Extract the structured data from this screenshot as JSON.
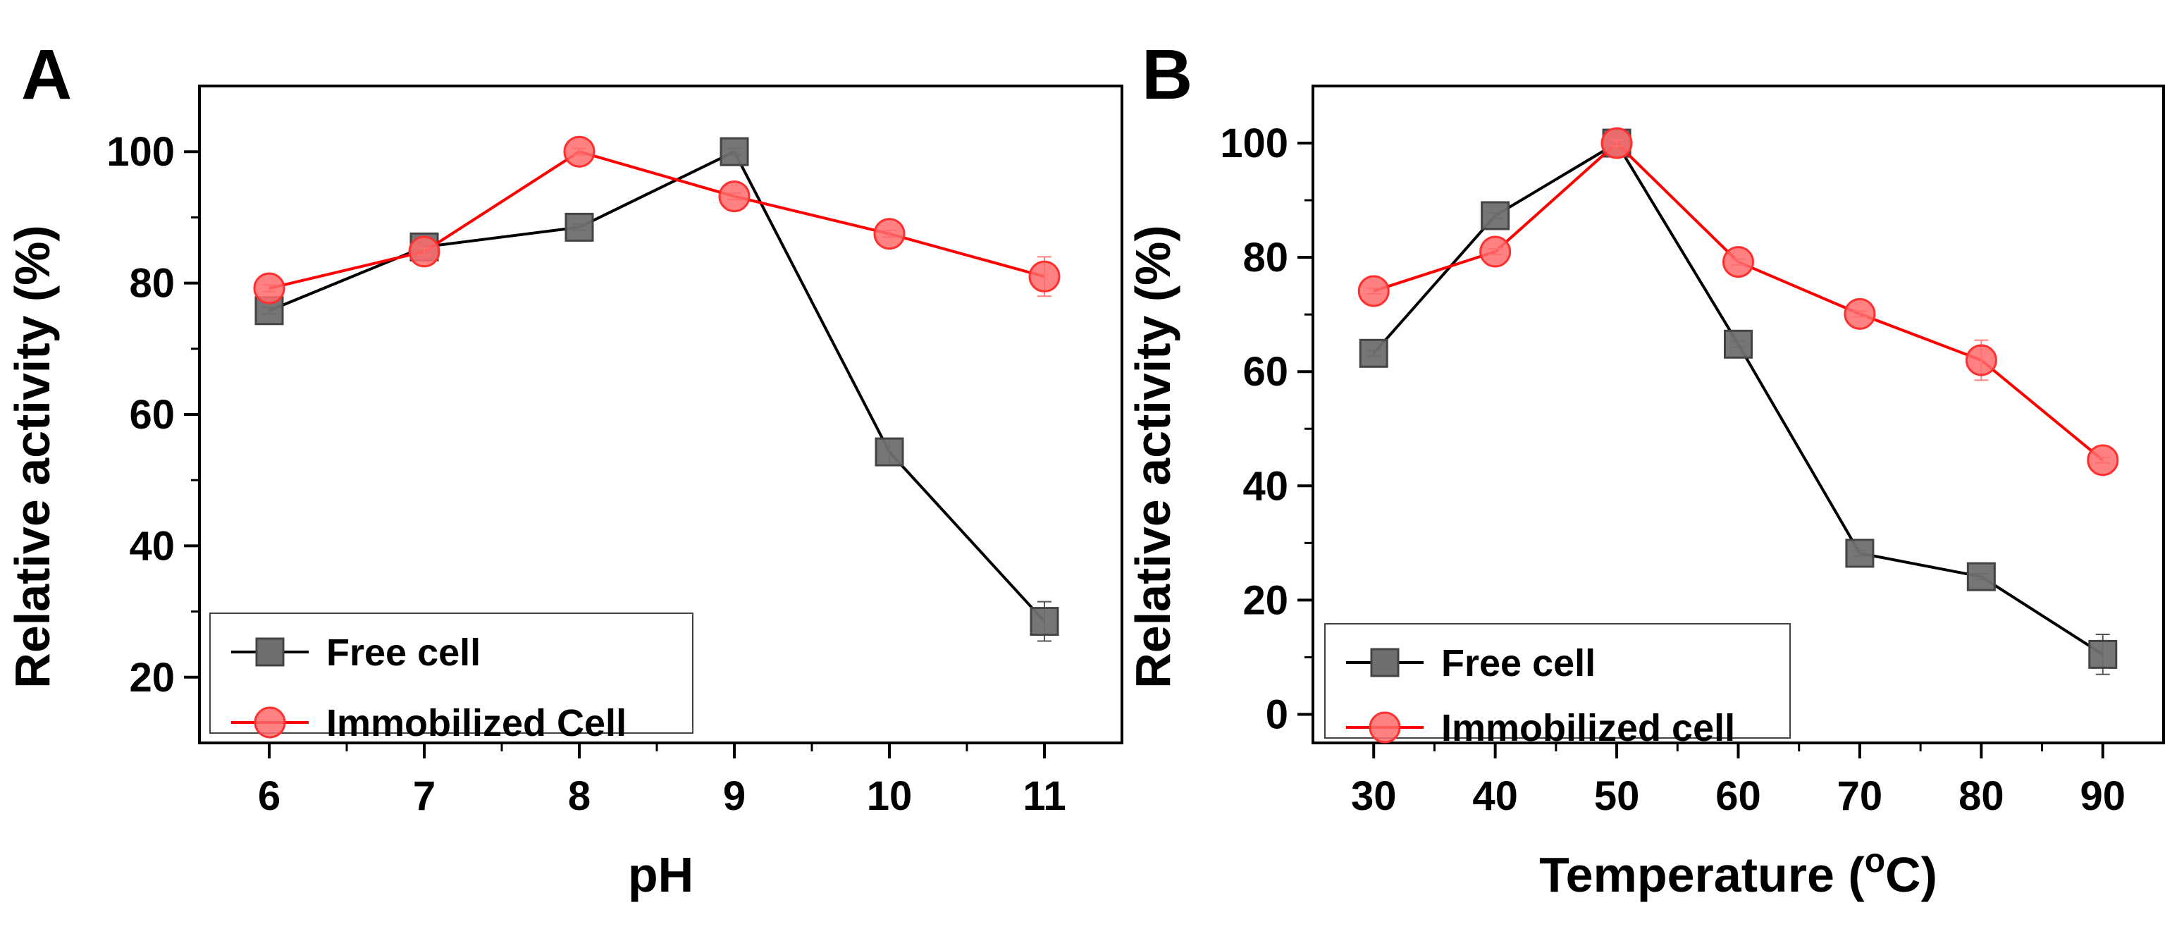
{
  "chart_data": [
    {
      "type": "line",
      "panel_label": "A",
      "xlabel": "pH",
      "ylabel": "Relative activity (%)",
      "x": [
        6,
        7,
        8,
        9,
        10,
        11
      ],
      "xlim": [
        5.55,
        11.5
      ],
      "ylim": [
        10,
        110
      ],
      "xticks": [
        6,
        7,
        8,
        9,
        10,
        11
      ],
      "yticks": [
        20,
        40,
        60,
        80,
        100
      ],
      "grid": false,
      "legend": "bottom-left",
      "series": [
        {
          "name": "Free cell",
          "marker": "square",
          "color": "#000000",
          "fill": "#6f6f6f",
          "values": [
            75.8,
            85.5,
            88.5,
            100,
            54.3,
            28.5
          ],
          "errors": [
            0.5,
            0.5,
            0.5,
            0.5,
            2.0,
            3.0
          ]
        },
        {
          "name": "Immobilized Cell",
          "marker": "circle",
          "color": "#ff0000",
          "fill": "#ff6b6b",
          "values": [
            79.2,
            84.8,
            100,
            93.2,
            87.5,
            81.0
          ],
          "errors": [
            0.5,
            0.5,
            0.5,
            0.5,
            0.5,
            3.0
          ]
        }
      ]
    },
    {
      "type": "line",
      "panel_label": "B",
      "xlabel_main": "Temperature (",
      "xlabel_sup": "o",
      "xlabel_tail": "C)",
      "ylabel": "Relative activity (%)",
      "x": [
        30,
        40,
        50,
        60,
        70,
        80,
        90
      ],
      "xlim": [
        25,
        95
      ],
      "ylim": [
        -5,
        110
      ],
      "xticks": [
        30,
        40,
        50,
        60,
        70,
        80,
        90
      ],
      "yticks": [
        0,
        20,
        40,
        60,
        80,
        100
      ],
      "grid": false,
      "legend": "bottom-left",
      "series": [
        {
          "name": "Free cell",
          "marker": "square",
          "color": "#000000",
          "fill": "#6f6f6f",
          "values": [
            63.2,
            87.3,
            100,
            64.8,
            28.2,
            24.1,
            10.5
          ],
          "errors": [
            0.5,
            0.5,
            0.5,
            0.5,
            0.5,
            0.5,
            3.5
          ]
        },
        {
          "name": "Immobilized cell",
          "marker": "circle",
          "color": "#ff0000",
          "fill": "#ff6b6b",
          "values": [
            74.1,
            81.0,
            100,
            79.2,
            70.1,
            62.0,
            44.5
          ],
          "errors": [
            0.5,
            0.5,
            0.5,
            0.5,
            0.5,
            3.5,
            0.5
          ]
        }
      ]
    }
  ]
}
